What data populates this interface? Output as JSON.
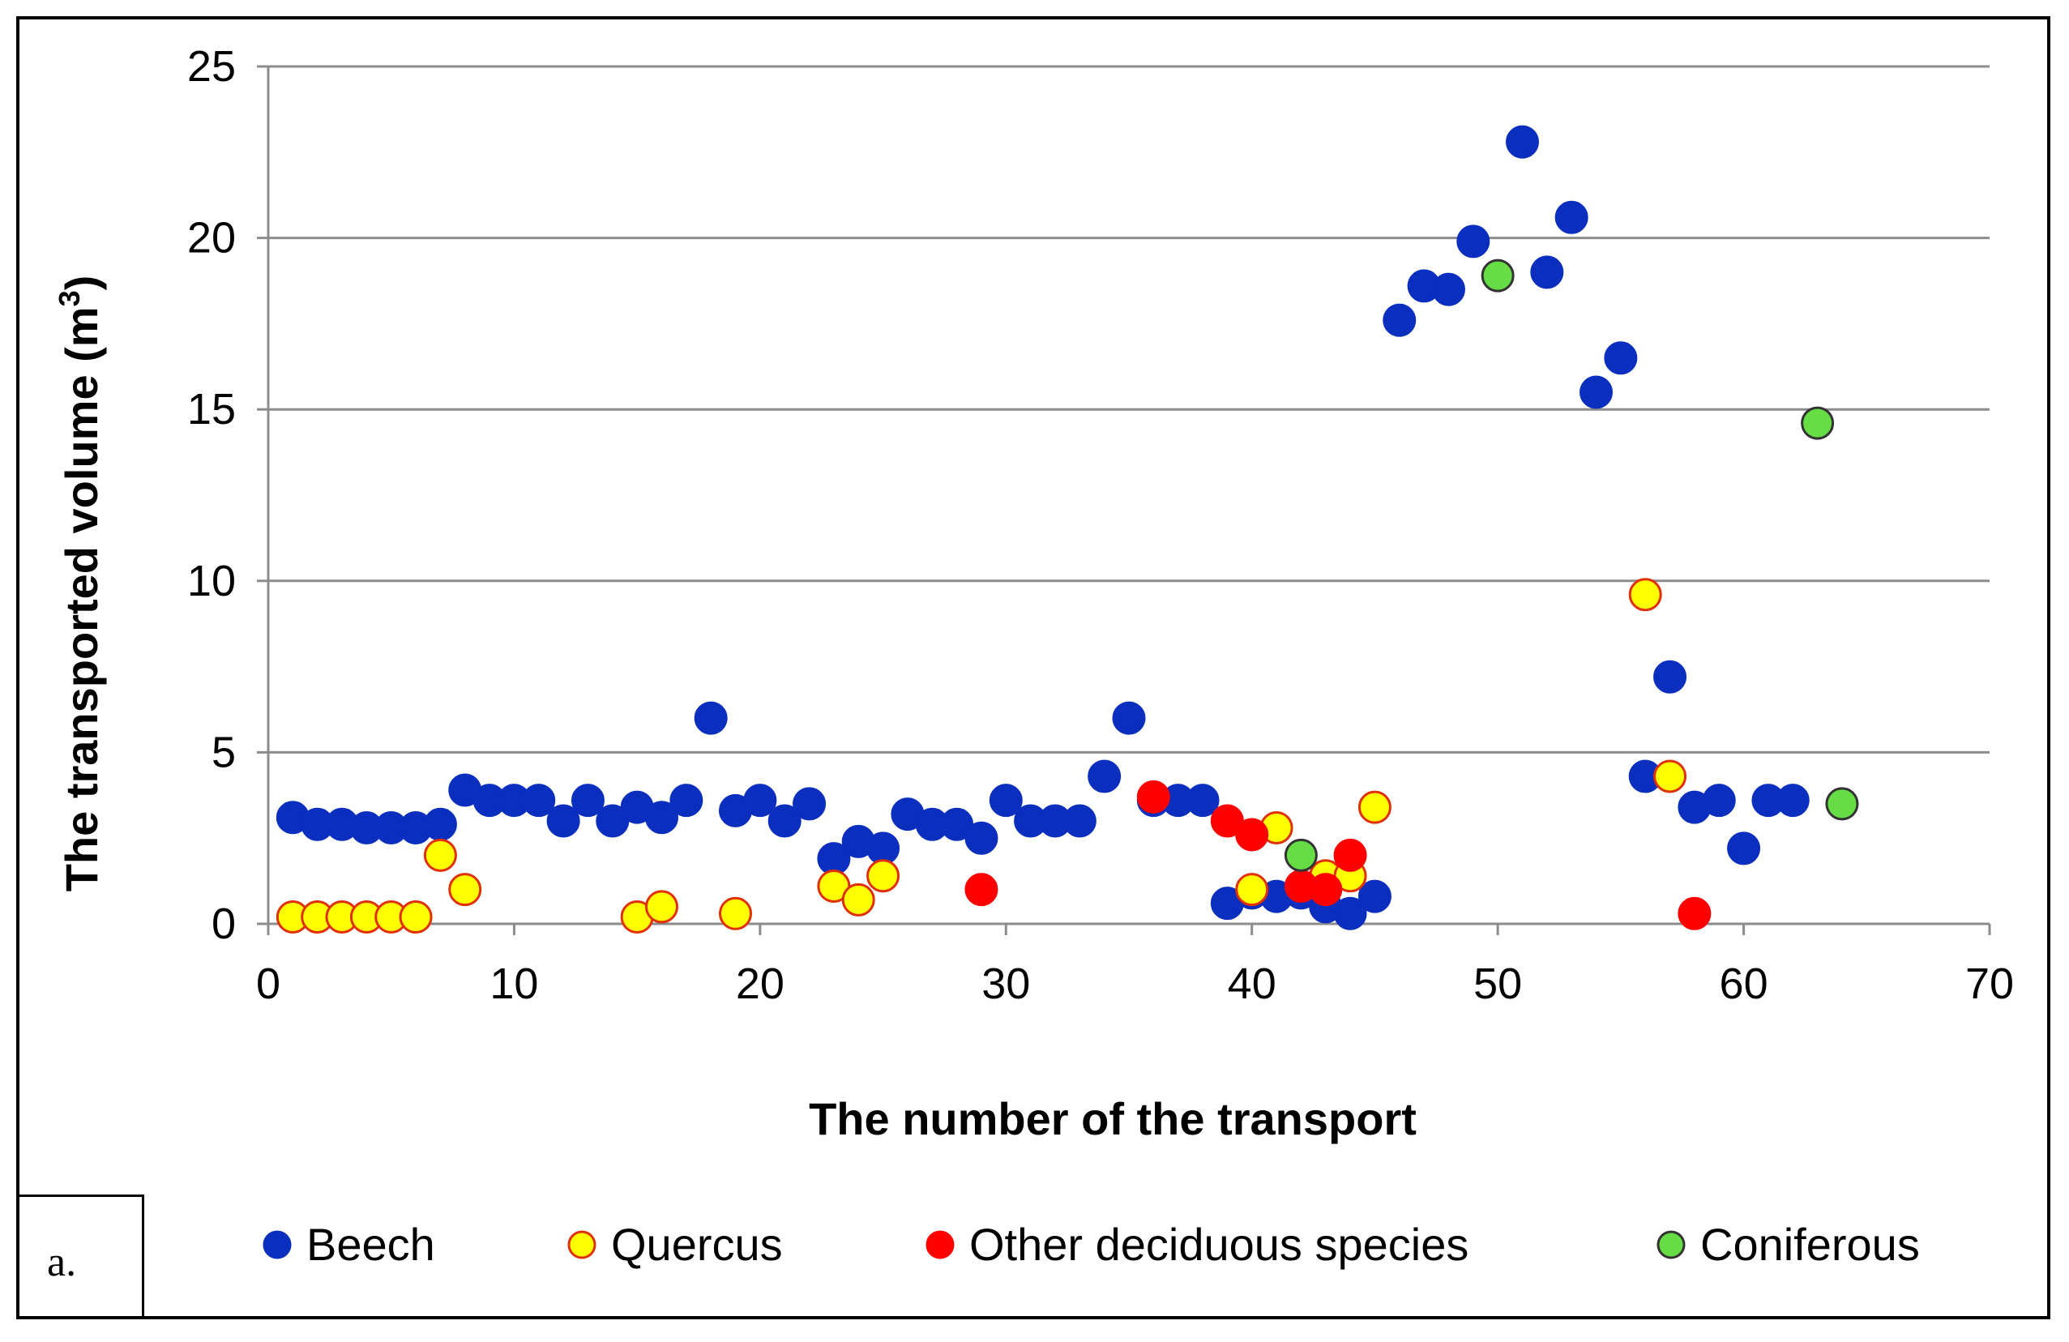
{
  "chart_data": {
    "type": "scatter",
    "title": "",
    "xlabel": "The number of the transport",
    "ylabel_main": "The transported volume (m",
    "ylabel_sup": "3",
    "ylabel_close": ")",
    "xlim": [
      0,
      70
    ],
    "ylim": [
      0,
      25
    ],
    "xticks": [
      0,
      10,
      20,
      30,
      40,
      50,
      60,
      70
    ],
    "yticks": [
      0,
      5,
      10,
      15,
      20,
      25
    ],
    "grid": "horizontal",
    "legend_position": "bottom",
    "panel_label": "a.",
    "series": [
      {
        "name": "Beech",
        "color": "#0a2fbf",
        "stroke": "#0a2fbf",
        "points": [
          [
            1,
            3.1
          ],
          [
            2,
            2.9
          ],
          [
            3,
            2.9
          ],
          [
            4,
            2.8
          ],
          [
            5,
            2.8
          ],
          [
            6,
            2.8
          ],
          [
            7,
            2.9
          ],
          [
            8,
            3.9
          ],
          [
            9,
            3.6
          ],
          [
            10,
            3.6
          ],
          [
            11,
            3.6
          ],
          [
            12,
            3.0
          ],
          [
            13,
            3.6
          ],
          [
            14,
            3.0
          ],
          [
            15,
            3.4
          ],
          [
            16,
            3.1
          ],
          [
            17,
            3.6
          ],
          [
            18,
            6.0
          ],
          [
            19,
            3.3
          ],
          [
            20,
            3.6
          ],
          [
            21,
            3.0
          ],
          [
            22,
            3.5
          ],
          [
            23,
            1.9
          ],
          [
            24,
            2.4
          ],
          [
            25,
            2.2
          ],
          [
            26,
            3.2
          ],
          [
            27,
            2.9
          ],
          [
            28,
            2.9
          ],
          [
            29,
            2.5
          ],
          [
            30,
            3.6
          ],
          [
            31,
            3.0
          ],
          [
            32,
            3.0
          ],
          [
            33,
            3.0
          ],
          [
            34,
            4.3
          ],
          [
            35,
            6.0
          ],
          [
            36,
            3.6
          ],
          [
            37,
            3.6
          ],
          [
            38,
            3.6
          ],
          [
            39,
            0.6
          ],
          [
            40,
            0.9
          ],
          [
            41,
            0.8
          ],
          [
            42,
            0.9
          ],
          [
            43,
            0.5
          ],
          [
            44,
            0.3
          ],
          [
            45,
            0.8
          ],
          [
            46,
            17.6
          ],
          [
            47,
            18.6
          ],
          [
            48,
            18.5
          ],
          [
            49,
            19.9
          ],
          [
            51,
            22.8
          ],
          [
            52,
            19.0
          ],
          [
            53,
            20.6
          ],
          [
            54,
            15.5
          ],
          [
            55,
            16.5
          ],
          [
            56,
            4.3
          ],
          [
            57,
            7.2
          ],
          [
            58,
            3.4
          ],
          [
            59,
            3.6
          ],
          [
            60,
            2.2
          ],
          [
            61,
            3.6
          ],
          [
            62,
            3.6
          ]
        ]
      },
      {
        "name": "Quercus",
        "color": "#ffff00",
        "stroke": "#e03000",
        "points": [
          [
            1,
            0.2
          ],
          [
            2,
            0.2
          ],
          [
            3,
            0.2
          ],
          [
            4,
            0.2
          ],
          [
            5,
            0.2
          ],
          [
            6,
            0.2
          ],
          [
            7,
            2.0
          ],
          [
            8,
            1.0
          ],
          [
            15,
            0.2
          ],
          [
            16,
            0.5
          ],
          [
            19,
            0.3
          ],
          [
            23,
            1.1
          ],
          [
            24,
            0.7
          ],
          [
            25,
            1.4
          ],
          [
            40,
            1.0
          ],
          [
            41,
            2.8
          ],
          [
            43,
            1.4
          ],
          [
            44,
            1.4
          ],
          [
            45,
            3.4
          ],
          [
            56,
            9.6
          ],
          [
            57,
            4.3
          ]
        ]
      },
      {
        "name": "Other deciduous species",
        "color": "#ff0000",
        "stroke": "#ff0000",
        "points": [
          [
            29,
            1.0
          ],
          [
            36,
            3.7
          ],
          [
            39,
            3.0
          ],
          [
            40,
            2.6
          ],
          [
            42,
            1.1
          ],
          [
            43,
            1.0
          ],
          [
            44,
            2.0
          ],
          [
            58,
            0.3
          ]
        ]
      },
      {
        "name": "Coniferous",
        "color": "#66dd44",
        "stroke": "#333333",
        "points": [
          [
            42,
            2.0
          ],
          [
            50,
            18.9
          ],
          [
            63,
            14.6
          ],
          [
            64,
            3.5
          ]
        ]
      }
    ]
  }
}
